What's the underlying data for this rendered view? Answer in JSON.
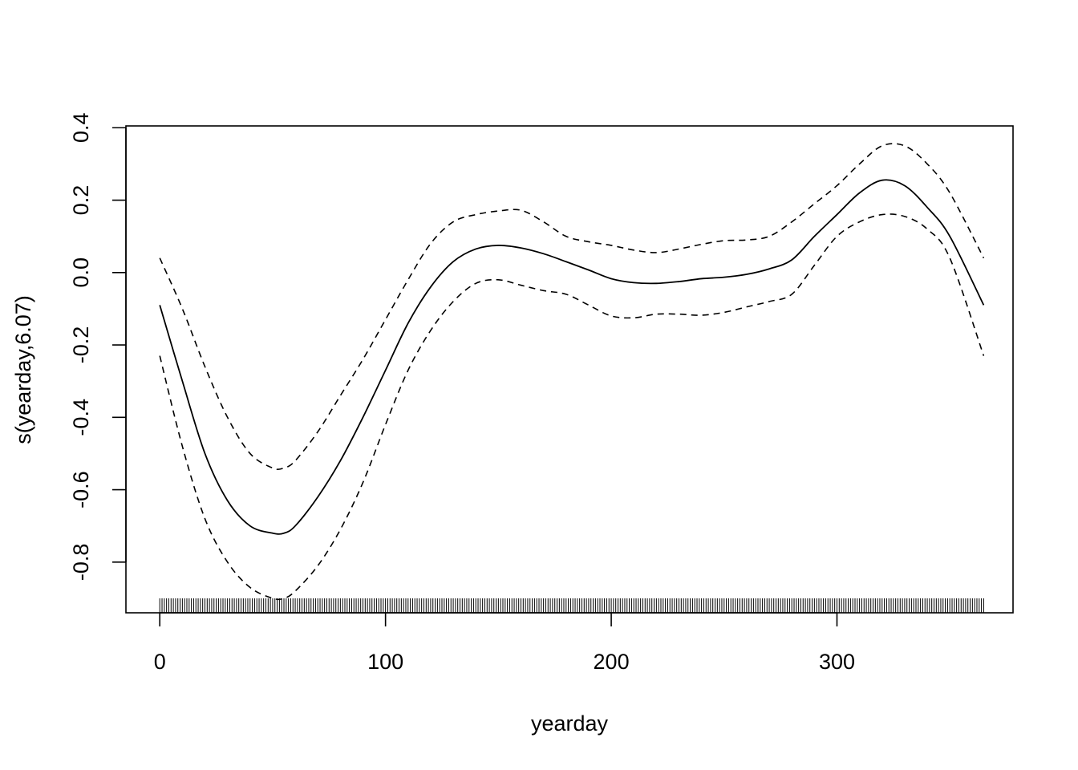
{
  "chart_data": {
    "type": "line",
    "title": "",
    "xlabel": "yearday",
    "ylabel": "s(yearday,6.07)",
    "xlim": [
      -15,
      378
    ],
    "ylim": [
      -0.94,
      0.405
    ],
    "x_ticks": [
      0,
      100,
      200,
      300
    ],
    "y_ticks": [
      -0.8,
      -0.6,
      -0.4,
      -0.2,
      0.0,
      0.2,
      0.4
    ],
    "x_tick_labels": [
      "0",
      "100",
      "200",
      "300"
    ],
    "y_tick_labels": [
      "-0.8",
      "-0.6",
      "-0.4",
      "-0.2",
      "0.0",
      "0.2",
      "0.4"
    ],
    "grid": false,
    "rug": {
      "from": 0,
      "to": 365,
      "step": 1
    },
    "series": [
      {
        "style": "solid",
        "x": [
          0,
          10,
          20,
          30,
          40,
          50,
          55,
          60,
          70,
          80,
          90,
          100,
          110,
          120,
          130,
          140,
          150,
          160,
          170,
          180,
          190,
          200,
          210,
          220,
          230,
          240,
          250,
          260,
          270,
          280,
          290,
          300,
          310,
          320,
          330,
          340,
          350,
          365
        ],
        "y": [
          -0.09,
          -0.3,
          -0.5,
          -0.63,
          -0.7,
          -0.72,
          -0.72,
          -0.7,
          -0.62,
          -0.52,
          -0.4,
          -0.27,
          -0.14,
          -0.04,
          0.03,
          0.065,
          0.075,
          0.068,
          0.052,
          0.03,
          0.007,
          -0.017,
          -0.028,
          -0.03,
          -0.025,
          -0.017,
          -0.013,
          -0.005,
          0.01,
          0.035,
          0.1,
          0.16,
          0.22,
          0.255,
          0.24,
          0.18,
          0.1,
          -0.09
        ]
      },
      {
        "style": "dashed",
        "x": [
          0,
          10,
          20,
          30,
          40,
          50,
          55,
          60,
          70,
          80,
          90,
          100,
          110,
          120,
          130,
          140,
          150,
          160,
          170,
          180,
          190,
          200,
          210,
          220,
          230,
          240,
          250,
          260,
          270,
          280,
          290,
          300,
          310,
          320,
          330,
          340,
          350,
          365
        ],
        "y": [
          0.04,
          -0.1,
          -0.26,
          -0.4,
          -0.5,
          -0.54,
          -0.54,
          -0.52,
          -0.44,
          -0.34,
          -0.24,
          -0.13,
          -0.02,
          0.08,
          0.14,
          0.16,
          0.17,
          0.172,
          0.14,
          0.1,
          0.085,
          0.075,
          0.062,
          0.055,
          0.065,
          0.078,
          0.088,
          0.09,
          0.1,
          0.14,
          0.19,
          0.24,
          0.3,
          0.35,
          0.35,
          0.3,
          0.22,
          0.04
        ]
      },
      {
        "style": "dashed",
        "x": [
          0,
          10,
          20,
          30,
          40,
          50,
          55,
          60,
          70,
          80,
          90,
          100,
          110,
          120,
          130,
          140,
          150,
          160,
          170,
          180,
          190,
          200,
          210,
          220,
          230,
          240,
          250,
          260,
          270,
          280,
          290,
          300,
          310,
          320,
          330,
          340,
          350,
          365
        ],
        "y": [
          -0.23,
          -0.48,
          -0.68,
          -0.8,
          -0.87,
          -0.9,
          -0.9,
          -0.88,
          -0.81,
          -0.71,
          -0.58,
          -0.42,
          -0.27,
          -0.16,
          -0.08,
          -0.03,
          -0.02,
          -0.035,
          -0.05,
          -0.06,
          -0.09,
          -0.12,
          -0.125,
          -0.115,
          -0.115,
          -0.118,
          -0.11,
          -0.095,
          -0.08,
          -0.06,
          0.02,
          0.1,
          0.14,
          0.16,
          0.155,
          0.12,
          0.04,
          -0.23
        ]
      }
    ]
  }
}
